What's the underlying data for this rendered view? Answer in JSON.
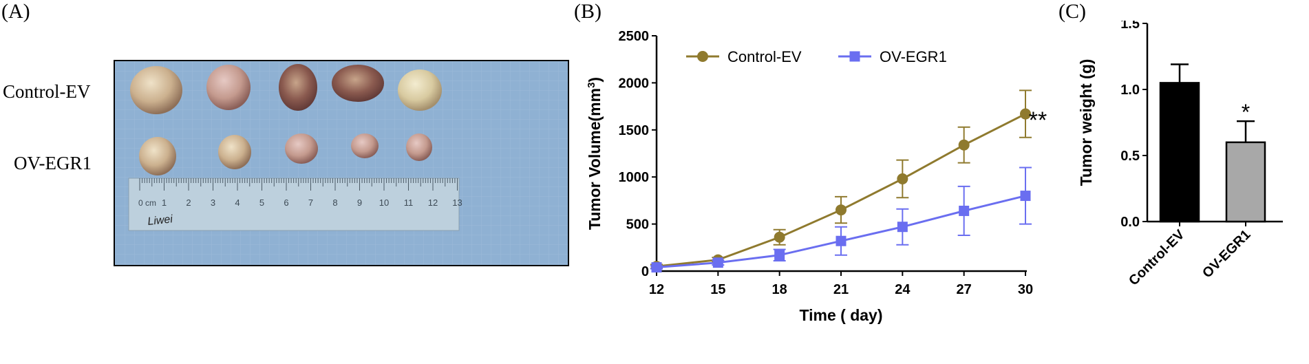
{
  "panel_labels": {
    "a": "(A)",
    "b": "(B)",
    "c": "(C)"
  },
  "photo": {
    "row_labels": [
      "Control-EV",
      "OV-EGR1"
    ],
    "ruler_numbers": [
      "1",
      "2",
      "3",
      "4",
      "5",
      "6",
      "7",
      "8",
      "9",
      "10",
      "11",
      "12",
      "13"
    ],
    "ruler_unit": "0 cm",
    "handwriting": "Liwei"
  },
  "colors": {
    "control": "#8f7a2e",
    "ov": "#6a6ef0",
    "bar_control": "#000000",
    "bar_ov": "#a8a8a8"
  },
  "chart_data": [
    {
      "type": "line",
      "xlabel": "Time ( day)",
      "ylabel": "Tumor Volume(mm",
      "ylabel_sup": "3",
      "ylabel_close": ")",
      "x": [
        12,
        15,
        18,
        21,
        24,
        27,
        30
      ],
      "xlim": [
        12,
        30
      ],
      "xticks": [
        "12",
        "15",
        "18",
        "21",
        "24",
        "27",
        "30"
      ],
      "ylim": [
        0,
        2500
      ],
      "yticks": [
        "0",
        "500",
        "1000",
        "1500",
        "2000",
        "2500"
      ],
      "series": [
        {
          "name": "Control-EV",
          "marker": "circle",
          "values": [
            50,
            120,
            360,
            650,
            980,
            1340,
            1670
          ],
          "errors": [
            20,
            25,
            80,
            140,
            200,
            190,
            250
          ]
        },
        {
          "name": "OV-EGR1",
          "marker": "square",
          "values": [
            40,
            90,
            170,
            320,
            470,
            640,
            800
          ],
          "errors": [
            15,
            25,
            60,
            150,
            190,
            260,
            300
          ]
        }
      ],
      "legend_position": "top-left",
      "annotation": "**"
    },
    {
      "type": "bar",
      "categories": [
        "Control-EV",
        "OV-EGR1"
      ],
      "values": [
        1.05,
        0.6
      ],
      "errors": [
        0.14,
        0.16
      ],
      "ylabel": "Tumor weight (g)",
      "ylim": [
        0,
        1.5
      ],
      "yticks": [
        "0.0",
        "0.5",
        "1.0",
        "1.5"
      ],
      "annotation": "*"
    }
  ]
}
